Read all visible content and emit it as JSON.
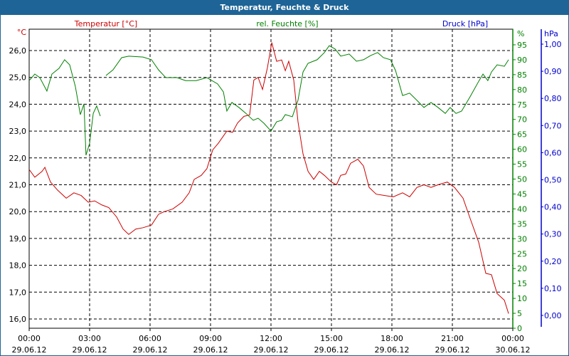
{
  "title": "Temperatur, Feuchte & Druck",
  "chart_data": {
    "type": "line",
    "title": "Temperatur, Feuchte & Druck",
    "legend": {
      "temperature": "Temperatur [°C]",
      "humidity": "rel. Feuchte [%]",
      "pressure": "Druck [hPa]"
    },
    "axes": {
      "temperature": {
        "unit": "°C",
        "ticks": [
          "16,0",
          "17,0",
          "18,0",
          "19,0",
          "20,0",
          "21,0",
          "22,0",
          "23,0",
          "24,0",
          "25,0",
          "26,0"
        ],
        "range": [
          16,
          26
        ],
        "color": "#cc0000"
      },
      "humidity": {
        "unit": "%",
        "ticks": [
          "0",
          "5",
          "10",
          "15",
          "20",
          "25",
          "30",
          "35",
          "40",
          "45",
          "50",
          "55",
          "60",
          "65",
          "70",
          "75",
          "80",
          "85",
          "90",
          "95"
        ],
        "range": [
          0,
          95
        ],
        "color": "#008000"
      },
      "pressure": {
        "unit": "hPa",
        "ticks": [
          "0,00",
          "0,10",
          "0,20",
          "0,30",
          "0,40",
          "0,50",
          "0,60",
          "0,70",
          "0,80",
          "0,90",
          "1,00"
        ],
        "range": [
          0,
          1
        ],
        "color": "#0000cc"
      }
    },
    "x_ticks": [
      {
        "time": "00:00",
        "date": "29.06.12"
      },
      {
        "time": "03:00",
        "date": "29.06.12"
      },
      {
        "time": "06:00",
        "date": "29.06.12"
      },
      {
        "time": "09:00",
        "date": "29.06.12"
      },
      {
        "time": "12:00",
        "date": "29.06.12"
      },
      {
        "time": "15:00",
        "date": "29.06.12"
      },
      {
        "time": "18:00",
        "date": "29.06.12"
      },
      {
        "time": "21:00",
        "date": "29.06.12"
      },
      {
        "time": "00:00",
        "date": "30.06.12"
      }
    ],
    "xlim_hours": [
      0,
      24
    ],
    "grid": true,
    "series": [
      {
        "name": "Temperatur",
        "color": "#cc0000",
        "segments": [
          [
            [
              0,
              21.57
            ],
            [
              0.28,
              21.28
            ],
            [
              0.64,
              21.5
            ],
            [
              0.78,
              21.65
            ],
            [
              1.06,
              21.1
            ],
            [
              1.41,
              20.8
            ],
            [
              1.84,
              20.5
            ],
            [
              2.22,
              20.7
            ],
            [
              2.58,
              20.6
            ],
            [
              2.93,
              20.35
            ],
            [
              3.25,
              20.4
            ],
            [
              3.6,
              20.25
            ],
            [
              3.95,
              20.15
            ],
            [
              4.34,
              19.8
            ],
            [
              4.66,
              19.35
            ],
            [
              4.94,
              19.15
            ],
            [
              5.29,
              19.35
            ],
            [
              5.65,
              19.4
            ],
            [
              6.07,
              19.5
            ],
            [
              6.42,
              19.9
            ],
            [
              6.71,
              20.0
            ],
            [
              7.13,
              20.1
            ],
            [
              7.59,
              20.35
            ],
            [
              7.94,
              20.7
            ],
            [
              8.19,
              21.2
            ],
            [
              8.54,
              21.35
            ],
            [
              8.82,
              21.6
            ],
            [
              9.11,
              22.3
            ],
            [
              9.39,
              22.55
            ],
            [
              9.81,
              23.0
            ],
            [
              10.09,
              22.95
            ],
            [
              10.34,
              23.3
            ],
            [
              10.66,
              23.55
            ],
            [
              10.94,
              23.6
            ],
            [
              11.15,
              24.9
            ],
            [
              11.36,
              25.0
            ],
            [
              11.58,
              24.55
            ],
            [
              11.82,
              25.35
            ],
            [
              12.04,
              26.3
            ],
            [
              12.28,
              25.6
            ],
            [
              12.53,
              25.65
            ],
            [
              12.71,
              25.25
            ],
            [
              12.88,
              25.6
            ],
            [
              13.13,
              24.9
            ],
            [
              13.34,
              23.35
            ],
            [
              13.59,
              22.15
            ],
            [
              13.84,
              21.5
            ],
            [
              14.12,
              21.2
            ],
            [
              14.4,
              21.5
            ],
            [
              14.65,
              21.35
            ],
            [
              15.0,
              21.1
            ],
            [
              15.25,
              21.0
            ],
            [
              15.46,
              21.35
            ],
            [
              15.71,
              21.4
            ],
            [
              15.95,
              21.8
            ],
            [
              16.31,
              21.95
            ],
            [
              16.59,
              21.7
            ],
            [
              16.87,
              20.9
            ],
            [
              17.22,
              20.65
            ],
            [
              17.65,
              20.6
            ],
            [
              18.07,
              20.55
            ],
            [
              18.53,
              20.7
            ],
            [
              18.88,
              20.55
            ],
            [
              19.24,
              20.9
            ],
            [
              19.59,
              21.0
            ],
            [
              19.94,
              20.9
            ],
            [
              20.29,
              21.0
            ],
            [
              20.75,
              21.1
            ],
            [
              21.11,
              20.9
            ],
            [
              21.53,
              20.5
            ],
            [
              21.88,
              19.75
            ],
            [
              22.31,
              18.85
            ],
            [
              22.66,
              17.7
            ],
            [
              22.94,
              17.65
            ],
            [
              23.22,
              16.95
            ],
            [
              23.58,
              16.7
            ],
            [
              23.79,
              16.2
            ]
          ]
        ]
      },
      {
        "name": "rel. Feuchte",
        "color": "#008000",
        "segments": [
          [
            [
              0,
              83
            ],
            [
              0.28,
              85.2
            ],
            [
              0.53,
              84
            ],
            [
              0.88,
              79.5
            ],
            [
              1.13,
              85.2
            ],
            [
              1.48,
              87.1
            ],
            [
              1.76,
              90
            ],
            [
              2.01,
              88.3
            ],
            [
              2.29,
              81.1
            ],
            [
              2.54,
              71.6
            ],
            [
              2.72,
              75.2
            ],
            [
              2.82,
              58
            ],
            [
              3.0,
              62
            ],
            [
              3.18,
              72
            ],
            [
              3.35,
              74.5
            ],
            [
              3.53,
              71.1
            ]
          ],
          [
            [
              3.81,
              84.7
            ],
            [
              4.16,
              86.6
            ],
            [
              4.59,
              90.7
            ],
            [
              4.94,
              91.2
            ],
            [
              5.65,
              90.9
            ],
            [
              6.07,
              90
            ],
            [
              6.42,
              86.6
            ],
            [
              6.78,
              84
            ],
            [
              7.34,
              84
            ],
            [
              7.76,
              83
            ],
            [
              8.29,
              83
            ],
            [
              8.82,
              84
            ],
            [
              9.35,
              81.9
            ],
            [
              9.64,
              79.2
            ],
            [
              9.81,
              72.8
            ],
            [
              10.06,
              75.7
            ],
            [
              10.41,
              74
            ],
            [
              10.76,
              72
            ],
            [
              11.12,
              69.7
            ],
            [
              11.36,
              70.4
            ],
            [
              11.65,
              68.7
            ],
            [
              12.0,
              66.1
            ],
            [
              12.28,
              69.2
            ],
            [
              12.53,
              69.7
            ],
            [
              12.71,
              71.6
            ],
            [
              13.06,
              70.9
            ],
            [
              13.34,
              76.4
            ],
            [
              13.59,
              85.9
            ],
            [
              13.84,
              88.8
            ],
            [
              14.29,
              90
            ],
            [
              14.65,
              92.4
            ],
            [
              14.89,
              94.7
            ],
            [
              15.18,
              93.6
            ],
            [
              15.46,
              91.2
            ],
            [
              15.88,
              91.9
            ],
            [
              16.24,
              89.5
            ],
            [
              16.59,
              90
            ],
            [
              16.94,
              91.4
            ],
            [
              17.29,
              92.4
            ],
            [
              17.58,
              90.7
            ],
            [
              17.93,
              90
            ],
            [
              18.18,
              86.4
            ],
            [
              18.53,
              78
            ],
            [
              18.88,
              78.8
            ],
            [
              19.24,
              76.4
            ],
            [
              19.59,
              74
            ],
            [
              19.94,
              75.7
            ],
            [
              20.29,
              74
            ],
            [
              20.65,
              72
            ],
            [
              20.89,
              74
            ],
            [
              21.18,
              72
            ],
            [
              21.46,
              72.8
            ],
            [
              21.88,
              77.6
            ],
            [
              22.31,
              82.8
            ],
            [
              22.52,
              85.2
            ],
            [
              22.76,
              83
            ],
            [
              22.94,
              85.9
            ],
            [
              23.22,
              88.3
            ],
            [
              23.58,
              87.8
            ],
            [
              23.79,
              90
            ]
          ]
        ]
      },
      {
        "name": "Druck",
        "color": "#0000cc",
        "segments": []
      }
    ]
  }
}
